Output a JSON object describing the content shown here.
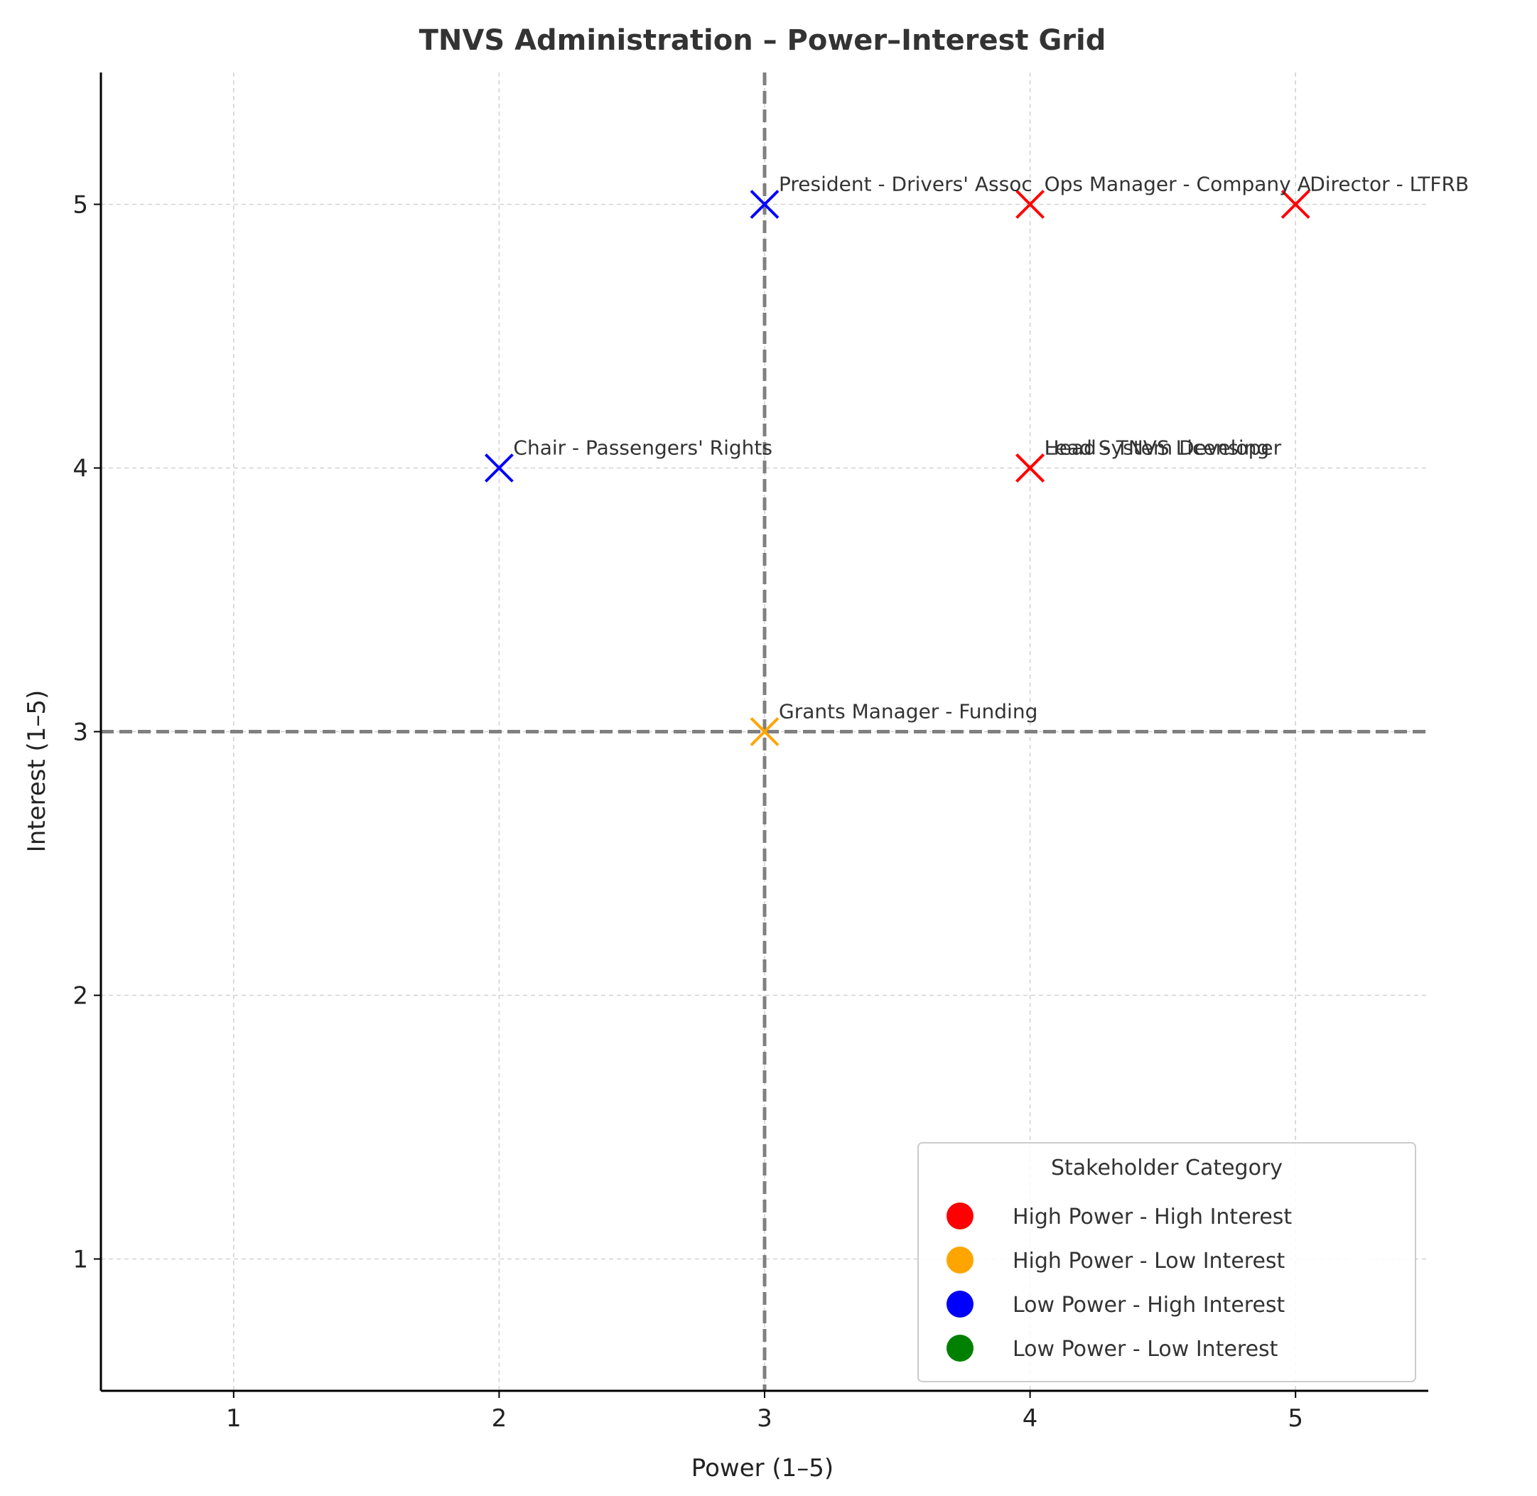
{
  "chart_data": {
    "type": "scatter",
    "title": "TNVS Administration – Power–Interest Grid",
    "xlabel": "Power (1–5)",
    "ylabel": "Interest (1–5)",
    "xlim": [
      0.5,
      5.5
    ],
    "ylim": [
      0.5,
      5.5
    ],
    "xticks": [
      "1",
      "2",
      "3",
      "4",
      "5"
    ],
    "yticks": [
      "1",
      "2",
      "3",
      "4",
      "5"
    ],
    "grid": true,
    "divider_x": 3,
    "divider_y": 3,
    "points": [
      {
        "label": "Director - LTFRB",
        "x": 5,
        "y": 5,
        "category": "High Power - High Interest"
      },
      {
        "label": "Ops Manager - Company A",
        "x": 4,
        "y": 5,
        "category": "High Power - High Interest"
      },
      {
        "label": "Head - TNVS Licensing",
        "x": 4,
        "y": 4,
        "category": "High Power - High Interest"
      },
      {
        "label": "Lead System Developer",
        "x": 4,
        "y": 4,
        "category": "High Power - High Interest"
      },
      {
        "label": "President - Drivers' Assoc",
        "x": 3,
        "y": 5,
        "category": "Low Power - High Interest"
      },
      {
        "label": "Chair - Passengers' Rights",
        "x": 2,
        "y": 4,
        "category": "Low Power - High Interest"
      },
      {
        "label": "Grants Manager - Funding",
        "x": 3,
        "y": 3,
        "category": "High Power - Low Interest"
      }
    ],
    "legend": {
      "title": "Stakeholder Category",
      "placement": "lower-right",
      "entries": [
        {
          "name": "High Power - High Interest",
          "color": "#ff0000"
        },
        {
          "name": "High Power - Low Interest",
          "color": "#ffa500"
        },
        {
          "name": "Low Power - High Interest",
          "color": "#0000ff"
        },
        {
          "name": "Low Power - Low Interest",
          "color": "#008000"
        }
      ]
    }
  }
}
